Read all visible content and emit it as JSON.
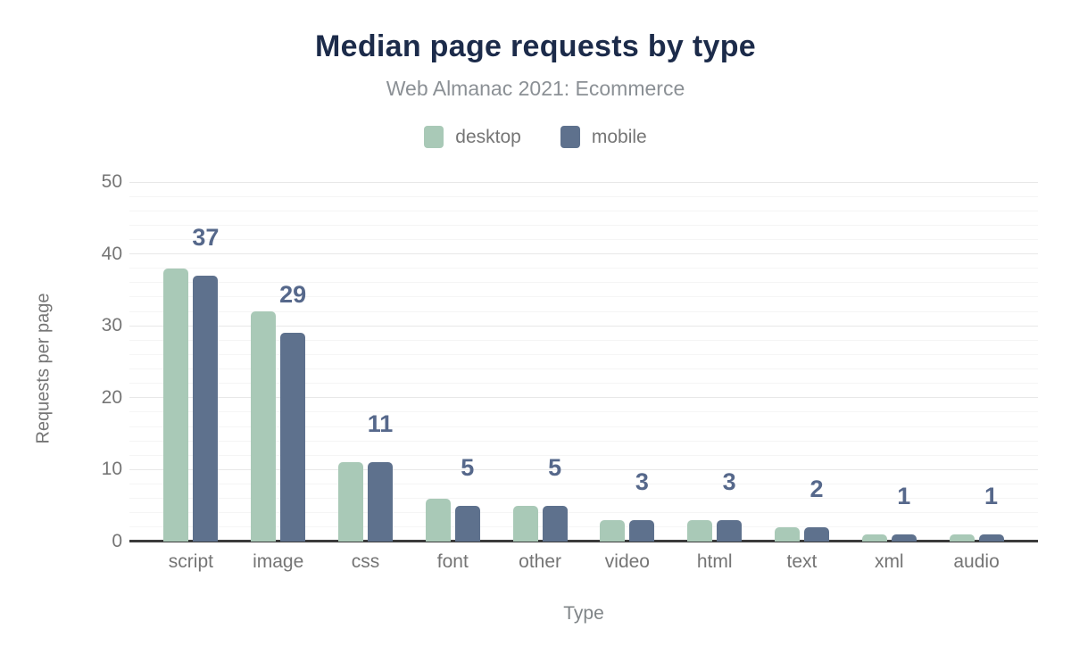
{
  "header": {
    "title": "Median page requests by type",
    "subtitle": "Web Almanac 2021: Ecommerce"
  },
  "legend": {
    "items": [
      {
        "label": "desktop",
        "color": "#a9c9b7"
      },
      {
        "label": "mobile",
        "color": "#5e718d"
      }
    ]
  },
  "axes": {
    "y_title": "Requests per page",
    "x_title": "Type",
    "y_tick_labels": [
      "0",
      "10",
      "20",
      "30",
      "40",
      "50"
    ]
  },
  "chart_data": {
    "type": "bar",
    "title": "Median page requests by type",
    "subtitle": "Web Almanac 2021: Ecommerce",
    "xlabel": "Type",
    "ylabel": "Requests per page",
    "ylim": [
      0,
      50
    ],
    "yticks": [
      0,
      10,
      20,
      30,
      40,
      50
    ],
    "minor_gridline_step": 2,
    "grid": true,
    "legend_position": "top",
    "categories": [
      "script",
      "image",
      "css",
      "font",
      "other",
      "video",
      "html",
      "text",
      "xml",
      "audio"
    ],
    "series": [
      {
        "name": "desktop",
        "color": "#a9c9b7",
        "values": [
          38,
          32,
          11,
          6,
          5,
          3,
          3,
          2,
          1,
          1
        ]
      },
      {
        "name": "mobile",
        "color": "#5e718d",
        "values": [
          37,
          29,
          11,
          5,
          5,
          3,
          3,
          2,
          1,
          1
        ]
      }
    ],
    "data_labels": {
      "series": "mobile",
      "values": [
        "37",
        "29",
        "11",
        "5",
        "5",
        "3",
        "3",
        "2",
        "1",
        "1"
      ],
      "color": "#56688b"
    }
  },
  "colors": {
    "title": "#1c2b4a",
    "subtitle": "#8b9095",
    "tick_label": "#757575",
    "axis_title": "#7f8487",
    "axis_line": "#3b3b3b",
    "grid_major": "#e8e8e8",
    "grid_minor": "#f5f5f5",
    "background": "#ffffff"
  }
}
